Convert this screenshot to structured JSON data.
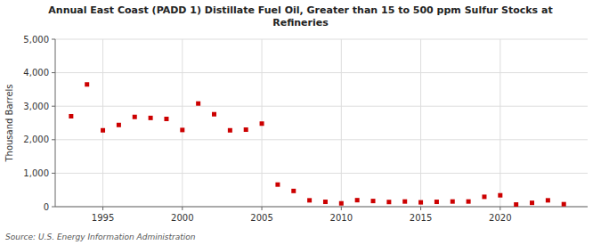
{
  "chart_data": {
    "type": "scatter",
    "title": "Annual East Coast (PADD 1) Distillate Fuel Oil, Greater than 15 to 500 ppm Sulfur Stocks at\nRefineries",
    "y_label": "Thousand Barrels",
    "annotations": [
      "Source: U.S. Energy Information Administration"
    ],
    "x": [
      1993,
      1994,
      1995,
      1996,
      1997,
      1998,
      1999,
      2000,
      2001,
      2002,
      2003,
      2004,
      2005,
      2006,
      2007,
      2008,
      2009,
      2010,
      2011,
      2012,
      2013,
      2014,
      2015,
      2016,
      2017,
      2018,
      2019,
      2020,
      2021,
      2022,
      2023,
      2024
    ],
    "values": [
      2700,
      3650,
      2280,
      2440,
      2680,
      2650,
      2620,
      2290,
      3080,
      2760,
      2280,
      2300,
      2480,
      660,
      470,
      190,
      145,
      100,
      195,
      170,
      140,
      155,
      130,
      145,
      155,
      155,
      295,
      340,
      65,
      115,
      190,
      75
    ],
    "color": "#cc0000",
    "marker": "square",
    "xlim": [
      1992.0,
      2025.5
    ],
    "xticks": [
      1995,
      2000,
      2005,
      2010,
      2015,
      2020
    ],
    "ylim": [
      0,
      5000
    ],
    "yticks": [
      0,
      {
        "value": 1000,
        "label": "1,000"
      },
      {
        "value": 2000,
        "label": "2,000"
      },
      {
        "value": 3000,
        "label": "3,000"
      },
      {
        "value": 4000,
        "label": "4,000"
      },
      {
        "value": 5000,
        "label": "5,000"
      }
    ],
    "grid": true
  }
}
